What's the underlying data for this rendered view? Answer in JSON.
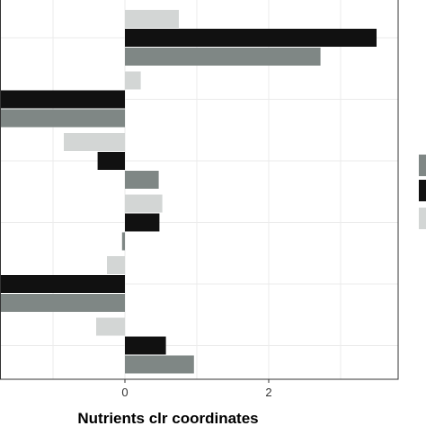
{
  "chart_data": {
    "type": "bar",
    "orientation": "horizontal",
    "xlabel": "Nutrients clr coordinates",
    "x_ticks": [
      0,
      2
    ],
    "xlim": [
      -1.75,
      3.8
    ],
    "grid": true,
    "legend_position": "right",
    "series": [
      {
        "color": "#d3d6d5",
        "values": [
          0.75,
          0.22,
          -0.85,
          0.52,
          -0.25,
          -0.4
        ]
      },
      {
        "color": "#111111",
        "values": [
          3.5,
          -1.75,
          -0.38,
          0.48,
          -1.75,
          0.57
        ]
      },
      {
        "color": "#7f8785",
        "values": [
          2.72,
          -1.75,
          0.47,
          -0.04,
          -1.75,
          0.96
        ]
      }
    ]
  }
}
